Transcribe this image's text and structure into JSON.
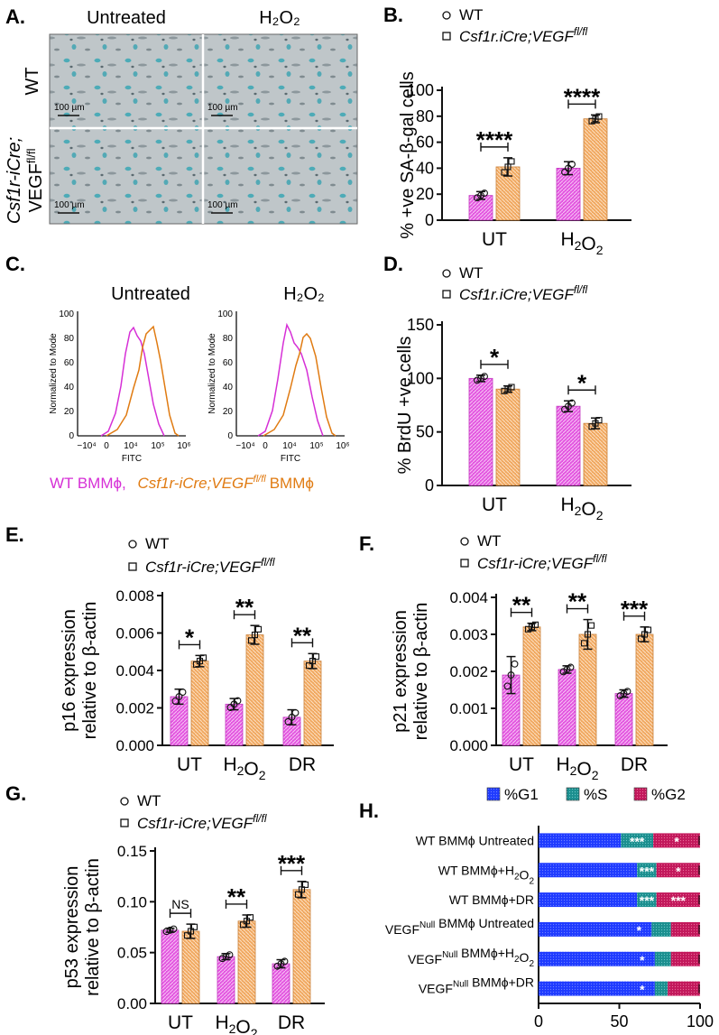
{
  "colors": {
    "wt": "#e356e0",
    "ko": "#f0a860",
    "axis": "#111111",
    "g1": "#1f3bff",
    "s": "#1b8f8f",
    "g2": "#c2185b",
    "flow_wt": "#d62fd6",
    "flow_ko": "#e07b12"
  },
  "panel_A": {
    "label": "A.",
    "col_labels": [
      "Untreated",
      "H₂O₂"
    ],
    "row_labels": [
      "WT",
      "Csf1r-iCre;",
      "VEGF",
      "fl/fl"
    ],
    "scale_bar": "100 µm",
    "image_desc": "SA-β-gal stained macrophage micrographs"
  },
  "panel_C": {
    "label": "C.",
    "titles": [
      "Untreated",
      "H₂O₂"
    ],
    "ylabel": "Normalized to Mode",
    "xlabel": "FITC",
    "yticks": [
      "0",
      "20",
      "40",
      "60",
      "80",
      "100"
    ],
    "xticks": [
      "−10⁴",
      "0",
      "10⁴",
      "10⁵",
      "10⁶"
    ],
    "legend_wt": "WT BMMϕ,",
    "legend_ko": "Csf1r-iCre;VEGF",
    "legend_ko_sup": "fl/fl",
    "legend_ko_suffix": "BMMϕ"
  },
  "legend": {
    "wt": "WT",
    "ko_B": "Csf1r.iCre;VEGF",
    "ko_D": "Csf1r.iCre;VEGF",
    "ko_EFG": "Csf1r-iCre;VEGF",
    "sup": "fl/fl"
  },
  "chart_data": [
    {
      "id": "B",
      "label": "B.",
      "type": "bar",
      "categories": [
        "UT",
        "H₂O₂"
      ],
      "series": [
        {
          "name": "WT",
          "values": [
            19,
            40
          ],
          "errors": [
            3,
            5
          ]
        },
        {
          "name": "Csf1r.iCre;VEGF fl/fl",
          "values": [
            41,
            78
          ],
          "errors": [
            7,
            3
          ]
        }
      ],
      "ylabel": "% +ve SA-β-gal cells",
      "ylim": [
        0,
        100
      ],
      "yticks": [
        "0",
        "20",
        "40",
        "60",
        "80",
        "100"
      ],
      "significance": [
        "****",
        "****"
      ]
    },
    {
      "id": "D",
      "label": "D.",
      "type": "bar",
      "categories": [
        "UT",
        "H₂O₂"
      ],
      "series": [
        {
          "name": "WT",
          "values": [
            100,
            74
          ],
          "errors": [
            3,
            5
          ]
        },
        {
          "name": "Csf1r.iCre;VEGF fl/fl",
          "values": [
            90,
            58
          ],
          "errors": [
            3,
            5
          ]
        }
      ],
      "ylabel": "% BrdU +ve cells",
      "ylim": [
        0,
        150
      ],
      "yticks": [
        "0",
        "50",
        "100",
        "150"
      ],
      "significance": [
        "*",
        "*"
      ]
    },
    {
      "id": "E",
      "label": "E.",
      "type": "bar",
      "categories": [
        "UT",
        "H₂O₂",
        "DR"
      ],
      "series": [
        {
          "name": "WT",
          "values": [
            0.0026,
            0.0022,
            0.0015
          ],
          "errors": [
            0.0004,
            0.0003,
            0.0004
          ]
        },
        {
          "name": "Csf1r-iCre;VEGF fl/fl",
          "values": [
            0.0045,
            0.0059,
            0.0045
          ],
          "errors": [
            0.0003,
            0.0005,
            0.0004
          ]
        }
      ],
      "ylabel": "p16 expression relative to β-actin",
      "ylim": [
        0,
        0.008
      ],
      "yticks": [
        "0.000",
        "0.002",
        "0.004",
        "0.006",
        "0.008"
      ],
      "significance": [
        "*",
        "**",
        "**"
      ]
    },
    {
      "id": "F",
      "label": "F.",
      "type": "bar",
      "categories": [
        "UT",
        "H₂O₂",
        "DR"
      ],
      "series": [
        {
          "name": "WT",
          "values": [
            0.0019,
            0.00205,
            0.0014
          ],
          "errors": [
            0.0005,
            0.0001,
            0.0001
          ]
        },
        {
          "name": "Csf1r-iCre;VEGF fl/fl",
          "values": [
            0.0032,
            0.003,
            0.003
          ],
          "errors": [
            0.0001,
            0.0004,
            0.0002
          ]
        }
      ],
      "ylabel": "p21 expression relative to β-actin",
      "ylim": [
        0,
        0.004
      ],
      "yticks": [
        "0.000",
        "0.001",
        "0.002",
        "0.003",
        "0.004"
      ],
      "significance": [
        "**",
        "**",
        "***"
      ]
    },
    {
      "id": "G",
      "label": "G.",
      "type": "bar",
      "categories": [
        "UT",
        "H₂O₂",
        "DR"
      ],
      "series": [
        {
          "name": "WT",
          "values": [
            0.072,
            0.046,
            0.039
          ],
          "errors": [
            0.002,
            0.003,
            0.004
          ]
        },
        {
          "name": "Csf1r-iCre;VEGF fl/fl",
          "values": [
            0.071,
            0.081,
            0.112
          ],
          "errors": [
            0.007,
            0.006,
            0.008
          ]
        }
      ],
      "ylabel": "p53 expression relative to β-actin",
      "ylim": [
        0,
        0.15
      ],
      "yticks": [
        "0.00",
        "0.05",
        "0.10",
        "0.15"
      ],
      "significance": [
        "NS",
        "**",
        "***"
      ]
    },
    {
      "id": "H",
      "label": "H.",
      "type": "stacked-bar-horizontal",
      "legend": [
        "%G1",
        "%S",
        "%G2"
      ],
      "rows": [
        {
          "label": "WT BMMϕ Untreated",
          "g1": 51,
          "s": 20,
          "g2": 29,
          "marks": {
            "s": "***",
            "g2": "*"
          }
        },
        {
          "label": "WT BMMϕ+H₂O₂",
          "g1": 61,
          "s": 12,
          "g2": 27,
          "marks": {
            "s": "***",
            "g2": "*"
          }
        },
        {
          "label": "WT BMMϕ+DR",
          "g1": 61,
          "s": 12,
          "g2": 27,
          "marks": {
            "s": "***",
            "g2": "***"
          }
        },
        {
          "label": "VEGF",
          "sup": "Null",
          "rest": " BMMϕ Untreated",
          "g1": 70,
          "s": 12,
          "g2": 18,
          "marks": {
            "g1": "*"
          }
        },
        {
          "label": "VEGF",
          "sup": "Null",
          "rest": " BMMϕ+H₂O₂",
          "g1": 72,
          "s": 10,
          "g2": 18,
          "marks": {
            "g1": "*"
          }
        },
        {
          "label": "VEGF",
          "sup": "Null",
          "rest": " BMMϕ+DR",
          "g1": 72,
          "s": 8,
          "g2": 20,
          "marks": {
            "g1": "*"
          }
        }
      ],
      "xlim": [
        0,
        100
      ],
      "xticks": [
        "0",
        "50",
        "100"
      ]
    }
  ]
}
